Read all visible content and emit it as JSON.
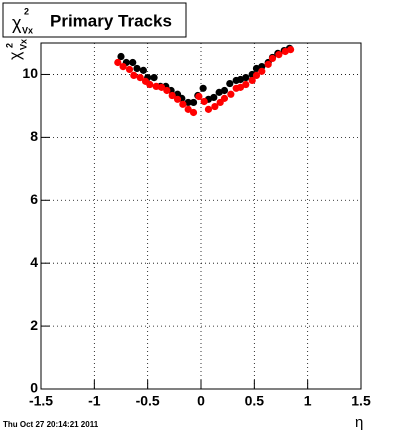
{
  "chart_data": {
    "type": "scatter",
    "title": "Primary Tracks",
    "title_symbol": "χ",
    "title_sup": "2",
    "title_sub": "Vx",
    "ylabel_symbol": "χ",
    "ylabel_sup": "2",
    "ylabel_sub": "Vx",
    "xlabel": "η",
    "footer": "Thu Oct 27 20:14:21 2011",
    "xlim": [
      -1.5,
      1.5
    ],
    "ylim": [
      0,
      11
    ],
    "xticks": [
      -1.5,
      -1,
      -0.5,
      0,
      0.5,
      1,
      1.5
    ],
    "yticks": [
      0,
      2,
      4,
      6,
      8,
      10
    ],
    "grid": true,
    "series": [
      {
        "color": "#000000",
        "x": [
          -0.75,
          -0.7,
          -0.64,
          -0.6,
          -0.54,
          -0.5,
          -0.44,
          -0.38,
          -0.33,
          -0.28,
          -0.22,
          -0.18,
          -0.12,
          -0.07,
          -0.03,
          0.02,
          0.07,
          0.12,
          0.17,
          0.22,
          0.27,
          0.33,
          0.37,
          0.42,
          0.48,
          0.52,
          0.57,
          0.63,
          0.67,
          0.72,
          0.78,
          0.83
        ],
        "values": [
          10.57,
          10.38,
          10.38,
          10.19,
          10.13,
          9.9,
          9.9,
          9.62,
          9.62,
          9.49,
          9.37,
          9.24,
          9.11,
          9.11,
          9.33,
          9.56,
          9.21,
          9.27,
          9.43,
          9.49,
          9.71,
          9.81,
          9.84,
          9.9,
          10.0,
          10.19,
          10.25,
          10.38,
          10.54,
          10.67,
          10.76,
          10.83
        ]
      },
      {
        "color": "#ff0000",
        "x": [
          -0.78,
          -0.73,
          -0.67,
          -0.63,
          -0.57,
          -0.52,
          -0.48,
          -0.42,
          -0.37,
          -0.32,
          -0.27,
          -0.22,
          -0.17,
          -0.12,
          -0.07,
          -0.02,
          0.03,
          0.07,
          0.13,
          0.18,
          0.22,
          0.28,
          0.33,
          0.37,
          0.42,
          0.48,
          0.52,
          0.57,
          0.63,
          0.67,
          0.73,
          0.79,
          0.84
        ],
        "values": [
          10.38,
          10.25,
          10.16,
          9.97,
          9.9,
          9.78,
          9.68,
          9.62,
          9.59,
          9.49,
          9.33,
          9.21,
          9.05,
          8.89,
          8.79,
          9.3,
          9.14,
          8.89,
          8.98,
          9.11,
          9.24,
          9.37,
          9.56,
          9.59,
          9.68,
          9.81,
          9.97,
          10.1,
          10.32,
          10.51,
          10.63,
          10.73,
          10.79
        ]
      }
    ]
  }
}
